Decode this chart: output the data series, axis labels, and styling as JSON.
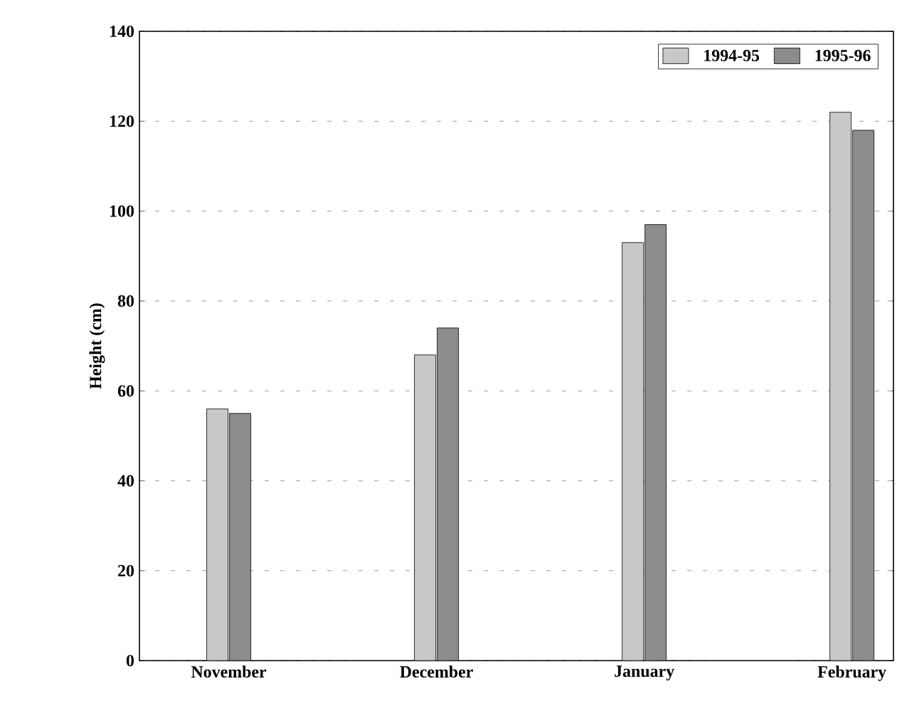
{
  "chart_data": {
    "type": "bar",
    "ylabel": "Height (cm)",
    "categories": [
      "November",
      "December",
      "January",
      "February"
    ],
    "series": [
      {
        "name": "1994-95",
        "color": "#c8c8c8",
        "values": [
          56,
          68,
          93,
          122
        ]
      },
      {
        "name": "1995-96",
        "color": "#8c8c8c",
        "values": [
          55,
          74,
          97,
          118
        ]
      }
    ],
    "ylim": [
      0,
      140
    ],
    "yticks": [
      0,
      20,
      40,
      60,
      80,
      100,
      120,
      140
    ],
    "grid": "y",
    "legend": "top right"
  }
}
